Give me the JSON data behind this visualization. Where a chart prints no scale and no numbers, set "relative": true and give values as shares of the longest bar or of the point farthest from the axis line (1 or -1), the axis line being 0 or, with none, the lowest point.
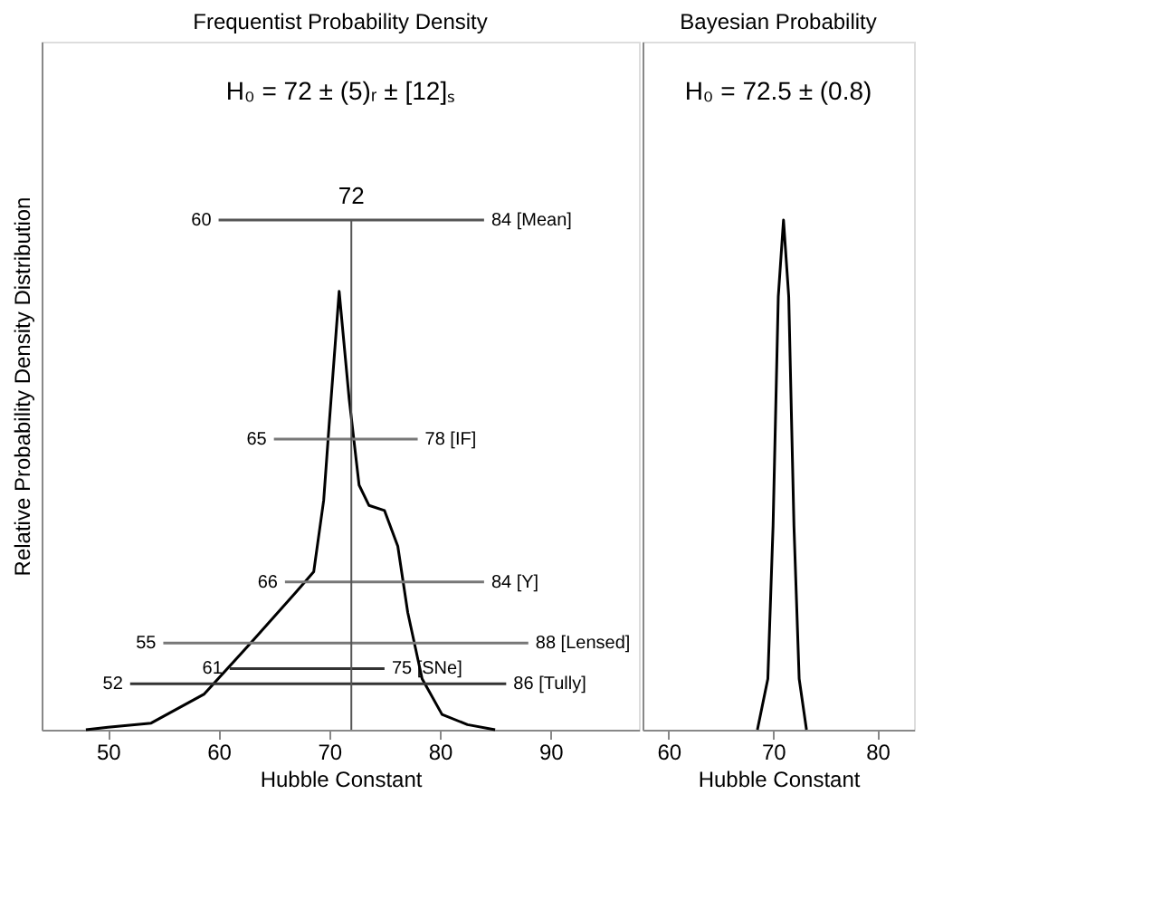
{
  "chart_data": [
    {
      "type": "line",
      "title": "Frequentist Probability Density",
      "xlabel": "Hubble Constant",
      "ylabel": "Relative Probability Density Distribution",
      "relative": true,
      "xlim": [
        44,
        98
      ],
      "xticks": [
        50,
        60,
        70,
        80,
        90
      ],
      "grid": false,
      "marker": "none",
      "line_style": "solid",
      "ref_lines": [
        {
          "axis": "x",
          "value": 72,
          "label": "72"
        }
      ],
      "annotations": [
        "H₀ = 72 ± (5)ᵣ ± [12]ₛ",
        {
          "text": "60",
          "x": 60,
          "y": 1
        },
        {
          "text": "84 [Mean]",
          "x": 84,
          "y": 1
        },
        {
          "text": "65",
          "x": 65,
          "y": 0.57
        },
        {
          "text": "78 [IF]",
          "x": 78,
          "y": 0.57
        },
        {
          "text": "66",
          "x": 66,
          "y": 0.29
        },
        {
          "text": "84 [Y]",
          "x": 84,
          "y": 0.29
        },
        {
          "text": "55",
          "x": 55,
          "y": 0.17
        },
        {
          "text": "88 [Lensed]",
          "x": 88,
          "y": 0.17
        },
        {
          "text": "61",
          "x": 61,
          "y": 0.12
        },
        {
          "text": "75 [SNe]",
          "x": 75,
          "y": 0.12
        },
        {
          "text": "52",
          "x": 52,
          "y": 0.09
        },
        {
          "text": "86 [Tully]",
          "x": 86,
          "y": 0.09
        }
      ],
      "series": [
        {
          "color": "#000000",
          "x": [
            48,
            50,
            53.9,
            58.7,
            62.9,
            67,
            68.6,
            69.5,
            70,
            70.9,
            71.8,
            72.7,
            73.6,
            75,
            76.2,
            77.1,
            78.4,
            80.2,
            82.5,
            85
          ],
          "values": [
            0,
            0.005,
            0.013,
            0.07,
            0.17,
            0.27,
            0.31,
            0.45,
            0.6,
            0.86,
            0.65,
            0.48,
            0.44,
            0.43,
            0.36,
            0.23,
            0.1,
            0.03,
            0.01,
            0
          ]
        },
        {
          "color": "#555555",
          "x": [
            60,
            84
          ],
          "values": [
            1,
            1
          ]
        },
        {
          "color": "#777777",
          "x": [
            65,
            78
          ],
          "values": [
            0.57,
            0.57
          ]
        },
        {
          "color": "#777777",
          "x": [
            66,
            84
          ],
          "values": [
            0.29,
            0.29
          ]
        },
        {
          "color": "#777777",
          "x": [
            55,
            88
          ],
          "values": [
            0.17,
            0.17
          ]
        },
        {
          "color": "#333333",
          "x": [
            61,
            75
          ],
          "values": [
            0.12,
            0.12
          ]
        },
        {
          "color": "#333333",
          "x": [
            52,
            86
          ],
          "values": [
            0.09,
            0.09
          ]
        }
      ]
    },
    {
      "type": "line",
      "title": "Bayesian Probability",
      "xlabel": "Hubble Constant",
      "relative": true,
      "xlim": [
        57.5,
        83.5
      ],
      "xticks": [
        60,
        70,
        80
      ],
      "grid": false,
      "marker": "none",
      "line_style": "solid",
      "annotations": [
        "H₀ = 72.5 ± (0.8)"
      ],
      "series": [
        {
          "color": "#000000",
          "x": [
            68.5,
            69.5,
            70,
            70.5,
            71,
            71.5,
            72,
            72.5,
            73.2
          ],
          "values": [
            0,
            0.1,
            0.4,
            0.85,
            1,
            0.85,
            0.4,
            0.1,
            0
          ]
        }
      ]
    }
  ]
}
